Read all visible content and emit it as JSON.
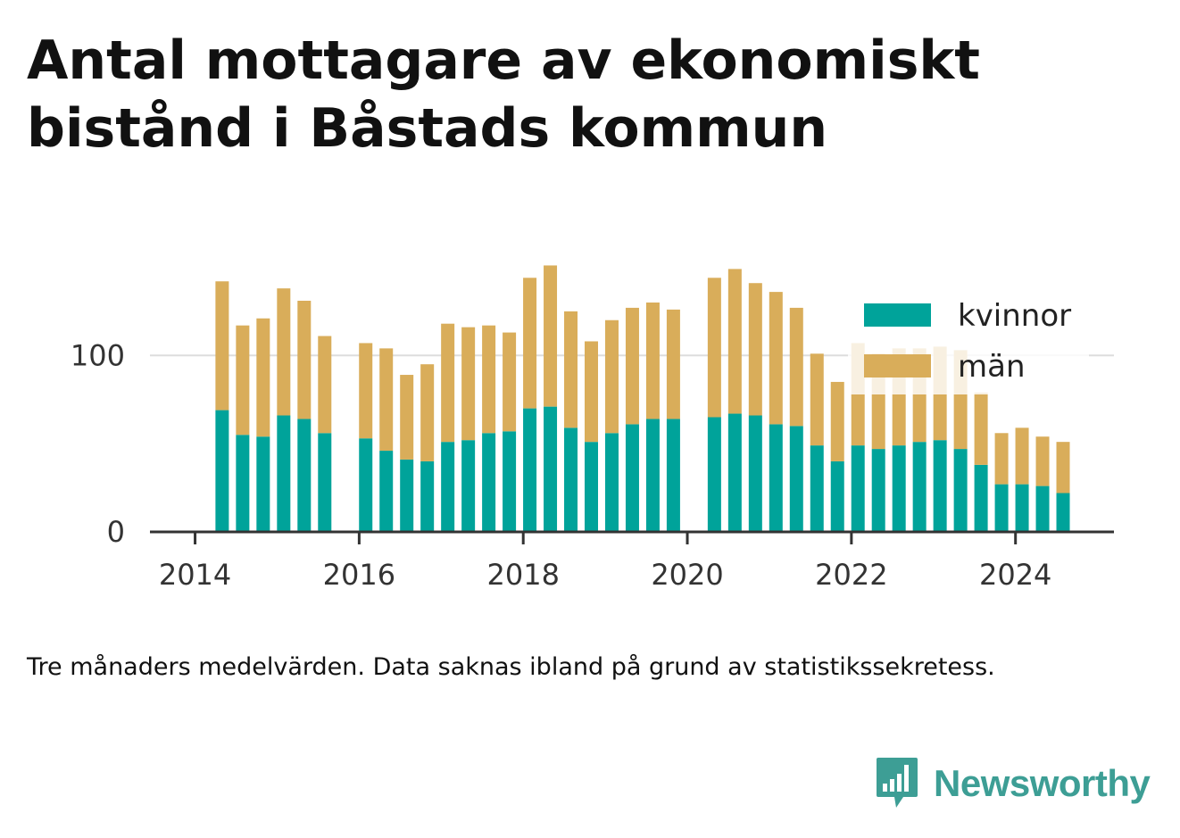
{
  "title": "Antal mottagare av ekonomiskt bistånd i Båstads kommun",
  "note": "Tre månaders medelvärden. Data saknas ibland på grund av statistikssekretess.",
  "brand": {
    "name": "Newsworthy",
    "color": "#3d9e95",
    "icon": "bar-chart-speech-bubble-icon"
  },
  "chart_data": {
    "type": "bar",
    "stacked": true,
    "x_unit": "year",
    "xlim": [
      2013.45,
      2025.2
    ],
    "ylim": [
      0,
      175
    ],
    "xticks": [
      2014,
      2016,
      2018,
      2020,
      2022,
      2024
    ],
    "yticks": [
      0,
      100
    ],
    "grid": {
      "y": true,
      "x": false
    },
    "legend_position": "top-right",
    "x": [
      2014.33,
      2014.58,
      2014.83,
      2015.08,
      2015.33,
      2015.58,
      2016.08,
      2016.33,
      2016.58,
      2016.83,
      2017.08,
      2017.33,
      2017.58,
      2017.83,
      2018.08,
      2018.33,
      2018.58,
      2018.83,
      2019.08,
      2019.33,
      2019.58,
      2019.83,
      2020.33,
      2020.58,
      2020.83,
      2021.08,
      2021.33,
      2021.58,
      2021.83,
      2022.08,
      2022.33,
      2022.58,
      2022.83,
      2023.08,
      2023.33,
      2023.58,
      2023.83,
      2024.08,
      2024.33,
      2024.58
    ],
    "series": [
      {
        "name": "kvinnor",
        "color": "#00a39a",
        "values": [
          69,
          55,
          54,
          66,
          64,
          56,
          53,
          46,
          41,
          40,
          51,
          52,
          56,
          57,
          70,
          71,
          59,
          51,
          56,
          61,
          64,
          64,
          65,
          67,
          66,
          61,
          60,
          49,
          40,
          49,
          47,
          49,
          51,
          52,
          47,
          38,
          27,
          27,
          26,
          22
        ]
      },
      {
        "name": "män",
        "color": "#d9ad5a",
        "values": [
          73,
          62,
          67,
          72,
          67,
          55,
          54,
          58,
          48,
          55,
          67,
          64,
          61,
          56,
          74,
          80,
          66,
          57,
          64,
          66,
          66,
          62,
          79,
          82,
          75,
          75,
          67,
          52,
          45,
          58,
          54,
          55,
          53,
          53,
          56,
          41,
          29,
          32,
          28,
          29
        ]
      }
    ]
  }
}
